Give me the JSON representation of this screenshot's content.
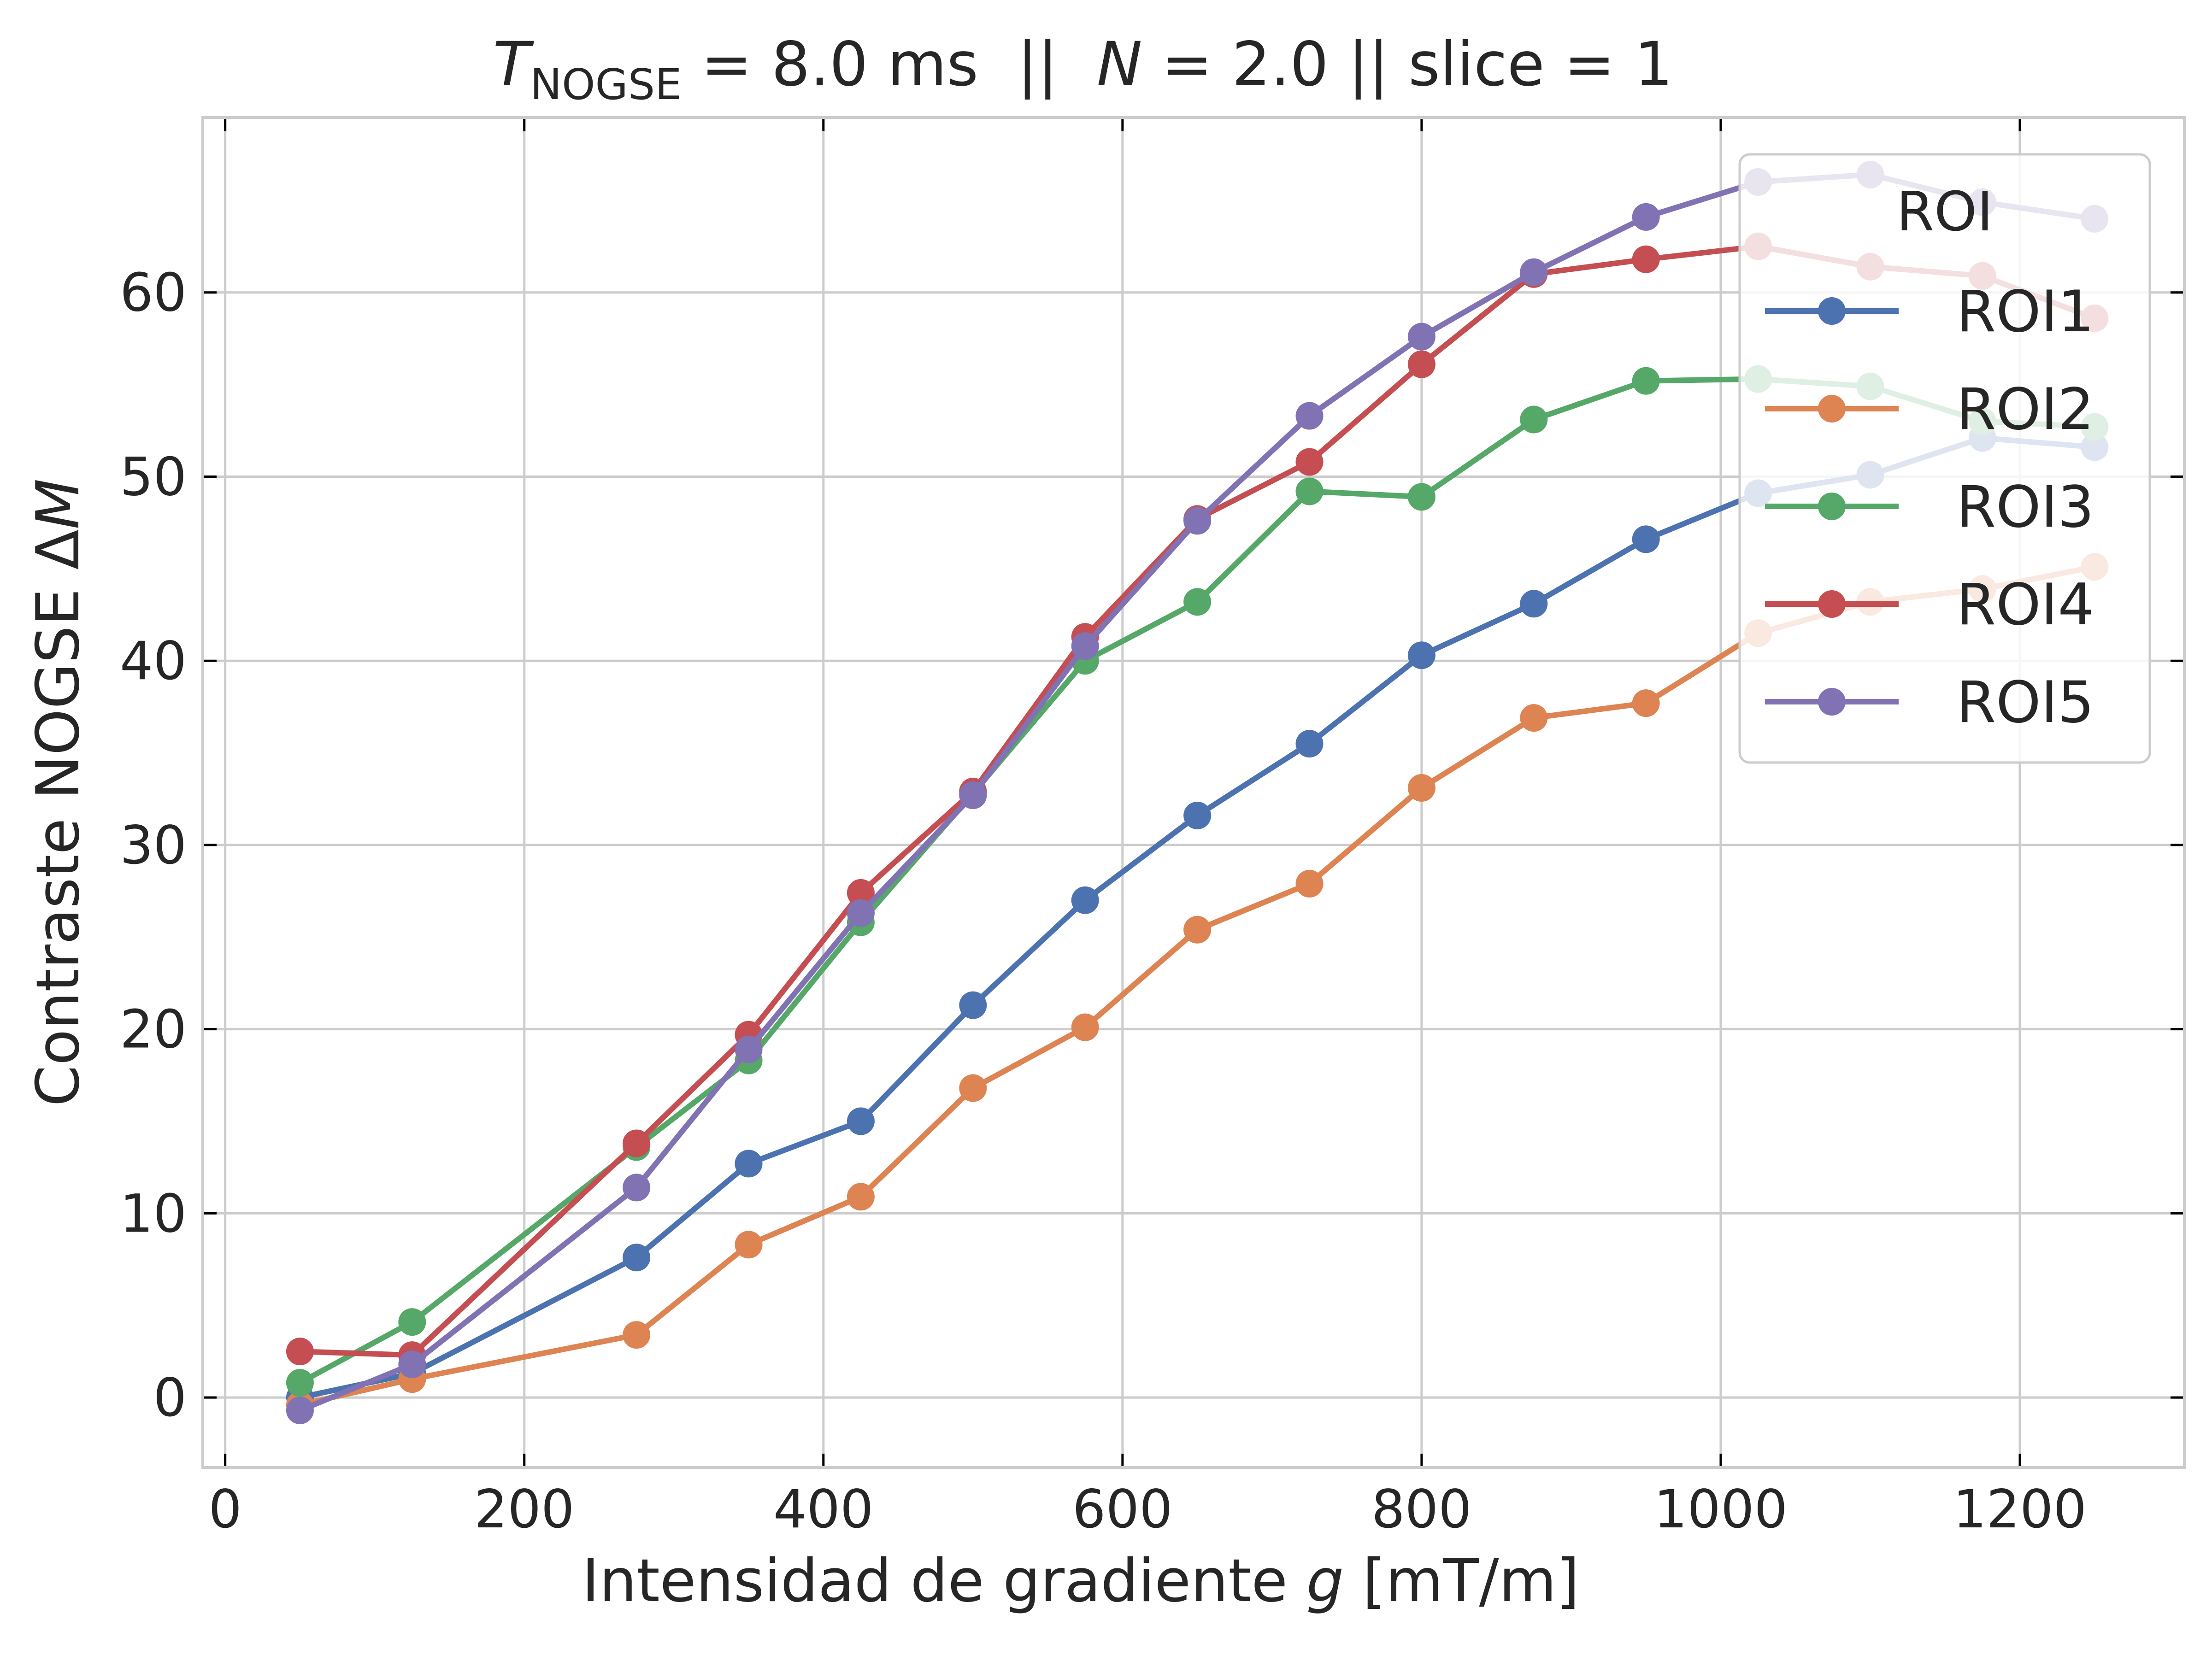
{
  "chart_data": {
    "type": "line",
    "title": {
      "t_symbol": "T",
      "t_subscript": "NOGSE",
      "t_value": " = 8.0 ms  ||  ",
      "n_symbol": "N",
      "n_value": " = 2.0 || slice = 1"
    },
    "xlabel": {
      "text": "Intensidad de gradiente ",
      "var": "g",
      "unit": " [mT/m]"
    },
    "ylabel": {
      "text": "Contraste NOGSE Δ",
      "var": "M"
    },
    "xlim": [
      -15,
      1310
    ],
    "ylim": [
      -3.8,
      69.5
    ],
    "xticks": [
      0,
      200,
      400,
      600,
      800,
      1000,
      1200
    ],
    "yticks": [
      0,
      10,
      20,
      30,
      40,
      50,
      60
    ],
    "grid": true,
    "legend": {
      "title": "ROI",
      "placement": "upper right"
    },
    "x": [
      50,
      125,
      275,
      350,
      425,
      500,
      575,
      650,
      725,
      800,
      875,
      950,
      1025,
      1100,
      1175,
      1250
    ],
    "series": [
      {
        "name": "ROI1",
        "color": "#4c72b0",
        "values": [
          0.0,
          1.3,
          7.6,
          12.7,
          15.0,
          21.3,
          27.0,
          31.6,
          35.5,
          40.3,
          43.1,
          46.6,
          49.1,
          50.1,
          52.1,
          51.6
        ]
      },
      {
        "name": "ROI2",
        "color": "#dd8452",
        "values": [
          -0.4,
          1.0,
          3.4,
          8.3,
          10.9,
          16.8,
          20.1,
          25.4,
          27.9,
          33.1,
          36.9,
          37.7,
          41.5,
          43.2,
          43.9,
          45.1
        ]
      },
      {
        "name": "ROI3",
        "color": "#55a868",
        "values": [
          0.8,
          4.1,
          13.6,
          18.3,
          25.8,
          32.8,
          40.0,
          43.2,
          49.2,
          48.9,
          53.1,
          55.2,
          55.3,
          54.9,
          53.0,
          52.7
        ]
      },
      {
        "name": "ROI4",
        "color": "#c44e52",
        "values": [
          2.5,
          2.3,
          13.8,
          19.7,
          27.4,
          32.9,
          41.3,
          47.7,
          50.8,
          56.1,
          61.0,
          61.8,
          62.5,
          61.4,
          60.9,
          58.6
        ]
      },
      {
        "name": "ROI5",
        "color": "#8172b3",
        "values": [
          -0.7,
          1.8,
          11.4,
          18.9,
          26.3,
          32.7,
          40.8,
          47.6,
          53.3,
          57.6,
          61.1,
          64.1,
          66.0,
          66.4,
          64.9,
          64.0
        ]
      }
    ]
  }
}
